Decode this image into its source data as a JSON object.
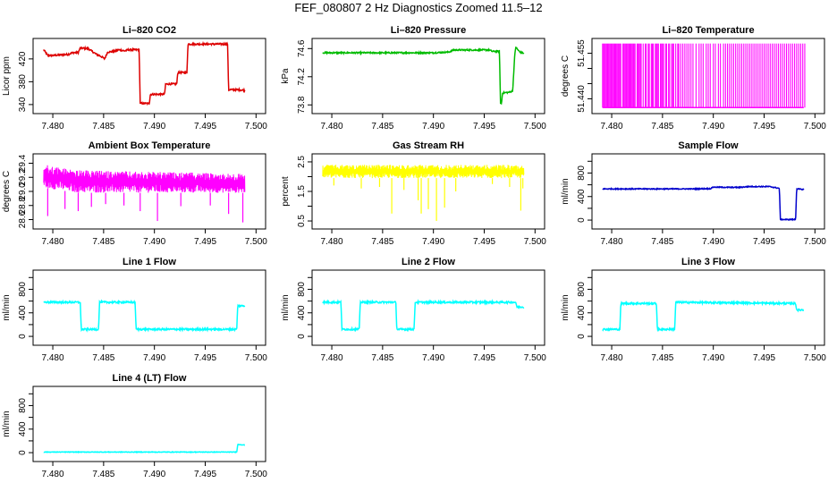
{
  "page_title": "FEF_080807  2 Hz Diagnostics Zoomed 11.5–12",
  "chart_data": [
    {
      "type": "line",
      "title": "Li–820 CO2",
      "ylabel": "Licor ppm",
      "xlabel": "",
      "color": "#dd0000",
      "xlim": [
        7.4785,
        7.5005
      ],
      "ylim": [
        332,
        448
      ],
      "xticks": [
        "7.480",
        "7.485",
        "7.490",
        "7.495",
        "7.500"
      ],
      "xtick_values": [
        7.48,
        7.485,
        7.49,
        7.495,
        7.5
      ],
      "yticks": [
        "340",
        "380",
        "420"
      ],
      "ytick_values": [
        340,
        380,
        420
      ],
      "noise": 1.5,
      "series": [
        {
          "name": "CO2",
          "points": [
            [
              7.4791,
              436
            ],
            [
              7.4795,
              426
            ],
            [
              7.48,
              426
            ],
            [
              7.4815,
              428
            ],
            [
              7.482,
              431
            ],
            [
              7.4825,
              431
            ],
            [
              7.4827,
              439
            ],
            [
              7.4835,
              438
            ],
            [
              7.4838,
              434
            ],
            [
              7.4843,
              428
            ],
            [
              7.4848,
              424
            ],
            [
              7.4851,
              420
            ],
            [
              7.4854,
              432
            ],
            [
              7.486,
              433
            ],
            [
              7.4865,
              436
            ],
            [
              7.4871,
              434
            ],
            [
              7.4874,
              436
            ],
            [
              7.4885,
              436
            ],
            [
              7.4886,
              342
            ],
            [
              7.4895,
              342
            ],
            [
              7.4896,
              358
            ],
            [
              7.491,
              358
            ],
            [
              7.4911,
              376
            ],
            [
              7.4922,
              376
            ],
            [
              7.4923,
              396
            ],
            [
              7.4932,
              396
            ],
            [
              7.4933,
              446
            ],
            [
              7.4972,
              446
            ],
            [
              7.4973,
              366
            ],
            [
              7.4982,
              366
            ],
            [
              7.4989,
              365
            ]
          ]
        }
      ]
    },
    {
      "type": "line",
      "title": "Li–820 Pressure",
      "ylabel": "kPa",
      "xlabel": "",
      "color": "#00bb00",
      "xlim": [
        7.4785,
        7.5005
      ],
      "ylim": [
        73.74,
        74.68
      ],
      "xticks": [
        "7.480",
        "7.485",
        "7.490",
        "7.495",
        "7.500"
      ],
      "xtick_values": [
        7.48,
        7.485,
        7.49,
        7.495,
        7.5
      ],
      "yticks": [
        "73.8",
        "74.2",
        "74.6"
      ],
      "ytick_values": [
        73.8,
        74.2,
        74.6
      ],
      "noise": 0.01,
      "series": [
        {
          "name": "Pressure",
          "points": [
            [
              7.4791,
              74.54
            ],
            [
              7.49,
              74.54
            ],
            [
              7.4915,
              74.55
            ],
            [
              7.492,
              74.58
            ],
            [
              7.4955,
              74.58
            ],
            [
              7.4958,
              74.56
            ],
            [
              7.4965,
              74.56
            ],
            [
              7.4966,
              73.82
            ],
            [
              7.4967,
              73.82
            ],
            [
              7.4968,
              73.97
            ],
            [
              7.4975,
              73.98
            ],
            [
              7.4978,
              74.0
            ],
            [
              7.498,
              74.5
            ],
            [
              7.4981,
              74.62
            ],
            [
              7.4985,
              74.55
            ],
            [
              7.4992,
              74.52
            ]
          ]
        }
      ]
    },
    {
      "type": "line",
      "title": "Li–820 Temperature",
      "ylabel": "degrees C",
      "xlabel": "",
      "color": "#ff00ff",
      "xlim": [
        7.4785,
        7.5005
      ],
      "ylim": [
        51.4366,
        51.4584
      ],
      "xticks": [
        "7.480",
        "7.485",
        "7.490",
        "7.495",
        "7.500"
      ],
      "xtick_values": [
        7.48,
        7.485,
        7.49,
        7.495,
        7.5
      ],
      "yticks": [
        "51.440",
        "51.455"
      ],
      "ytick_values": [
        51.44,
        51.455
      ],
      "extra_yticks": [
        51.445,
        51.45
      ],
      "baseline": 51.4371,
      "top": 51.4582,
      "spikes": [
        7.4791,
        7.4792,
        7.4793,
        7.4794,
        7.4795,
        7.4796,
        7.4797,
        7.4798,
        7.4799,
        7.48,
        7.4801,
        7.4802,
        7.4803,
        7.4804,
        7.4805,
        7.4806,
        7.4807,
        7.4808,
        7.4809,
        7.4811,
        7.4812,
        7.4813,
        7.4814,
        7.4815,
        7.4816,
        7.4817,
        7.4818,
        7.4819,
        7.482,
        7.4821,
        7.4822,
        7.4823,
        7.4825,
        7.4826,
        7.4827,
        7.4828,
        7.4829,
        7.4831,
        7.4833,
        7.4834,
        7.4836,
        7.4837,
        7.4839,
        7.484,
        7.4841,
        7.4843,
        7.4844,
        7.4845,
        7.4846,
        7.4848,
        7.4849,
        7.485,
        7.4851,
        7.4853,
        7.4854,
        7.4856,
        7.4857,
        7.4859,
        7.486,
        7.4861,
        7.4863,
        7.4865,
        7.4866,
        7.4868,
        7.487,
        7.4872,
        7.4874,
        7.4876,
        7.4878,
        7.488,
        7.4883,
        7.4886,
        7.4888,
        7.489,
        7.4893,
        7.4895,
        7.4897,
        7.49,
        7.4902,
        7.4905,
        7.4907,
        7.491,
        7.4912,
        7.4914,
        7.4916,
        7.4918,
        7.492,
        7.4922,
        7.4924,
        7.4926,
        7.4928,
        7.493,
        7.4932,
        7.4934,
        7.4936,
        7.4938,
        7.494,
        7.4942,
        7.4944,
        7.4946,
        7.4948,
        7.495,
        7.4952,
        7.4954,
        7.4956,
        7.4958,
        7.496,
        7.4962,
        7.4964,
        7.4966,
        7.4968,
        7.497,
        7.4972,
        7.4974,
        7.4976,
        7.4978,
        7.498,
        7.4982,
        7.4984,
        7.4986,
        7.4988,
        7.499
      ]
    },
    {
      "type": "line",
      "title": "Ambient Box Temperature",
      "ylabel": "degrees C",
      "xlabel": "",
      "color": "#ff00ff",
      "xlim": [
        7.4785,
        7.5005
      ],
      "ylim": [
        28.53,
        29.47
      ],
      "xticks": [
        "7.480",
        "7.485",
        "7.490",
        "7.495",
        "7.500"
      ],
      "xtick_values": [
        7.48,
        7.485,
        7.49,
        7.495,
        7.5
      ],
      "yticks": [
        "28.6",
        "28.8",
        "29.0",
        "29.2",
        "29.4"
      ],
      "ytick_values": [
        28.6,
        28.8,
        29.0,
        29.2,
        29.4
      ],
      "band": [
        {
          "x": 7.4791,
          "lo": 29.05,
          "hi": 29.38
        },
        {
          "x": 7.4825,
          "lo": 28.98,
          "hi": 29.3
        },
        {
          "x": 7.4989,
          "lo": 28.98,
          "hi": 29.25
        }
      ],
      "dips": [
        [
          7.4795,
          28.65
        ],
        [
          7.4812,
          28.75
        ],
        [
          7.4825,
          28.72
        ],
        [
          7.4838,
          28.78
        ],
        [
          7.4852,
          28.82
        ],
        [
          7.487,
          28.8
        ],
        [
          7.4886,
          28.72
        ],
        [
          7.4903,
          28.58
        ],
        [
          7.4926,
          28.79
        ],
        [
          7.4955,
          28.8
        ],
        [
          7.4973,
          28.68
        ],
        [
          7.4987,
          28.56
        ]
      ]
    },
    {
      "type": "line",
      "title": "Gas Stream RH",
      "ylabel": "percent",
      "xlabel": "",
      "color": "#ffff00",
      "xlim": [
        7.4785,
        7.5005
      ],
      "ylim": [
        0.38,
        2.62
      ],
      "xticks": [
        "7.480",
        "7.485",
        "7.490",
        "7.495",
        "7.500"
      ],
      "xtick_values": [
        7.48,
        7.485,
        7.49,
        7.495,
        7.5
      ],
      "yticks": [
        "0.5",
        "1.5",
        "2.5"
      ],
      "ytick_values": [
        0.5,
        1.5,
        2.5
      ],
      "extra_yticks": [
        1.0,
        2.0
      ],
      "band": [
        {
          "x": 7.4791,
          "lo": 1.95,
          "hi": 2.4
        },
        {
          "x": 7.4989,
          "lo": 1.95,
          "hi": 2.4
        }
      ],
      "dips": [
        [
          7.4802,
          1.7
        ],
        [
          7.4829,
          1.6
        ],
        [
          7.4847,
          1.65
        ],
        [
          7.4859,
          0.75
        ],
        [
          7.4871,
          1.55
        ],
        [
          7.4885,
          1.2
        ],
        [
          7.4888,
          0.75
        ],
        [
          7.4895,
          0.9
        ],
        [
          7.4903,
          0.5
        ],
        [
          7.4911,
          0.95
        ],
        [
          7.4922,
          1.5
        ],
        [
          7.4958,
          1.75
        ],
        [
          7.4975,
          1.65
        ],
        [
          7.4986,
          0.85
        ],
        [
          7.4988,
          1.6
        ]
      ]
    },
    {
      "type": "line",
      "title": "Sample Flow",
      "ylabel": "ml/min",
      "xlabel": "",
      "color": "#0000cc",
      "xlim": [
        7.4785,
        7.5005
      ],
      "ylim": [
        -75,
        1050
      ],
      "xticks": [
        "7.480",
        "7.485",
        "7.490",
        "7.495",
        "7.500"
      ],
      "xtick_values": [
        7.48,
        7.485,
        7.49,
        7.495,
        7.5
      ],
      "yticks": [
        "0",
        "400",
        "800"
      ],
      "ytick_values": [
        0,
        400,
        800
      ],
      "extra_yticks": [
        200,
        600,
        1000
      ],
      "noise": 8,
      "series": [
        {
          "name": "Sample Flow",
          "points": [
            [
              7.4791,
              530
            ],
            [
              7.488,
              530
            ],
            [
              7.4898,
              535
            ],
            [
              7.4899,
              560
            ],
            [
              7.4925,
              555
            ],
            [
              7.4935,
              570
            ],
            [
              7.4955,
              570
            ],
            [
              7.4965,
              540
            ],
            [
              7.4966,
              10
            ],
            [
              7.4981,
              10
            ],
            [
              7.4982,
              530
            ],
            [
              7.4989,
              520
            ]
          ]
        }
      ]
    },
    {
      "type": "line",
      "title": "Line 1 Flow",
      "ylabel": "ml/min",
      "xlabel": "",
      "color": "#00ffff",
      "xlim": [
        7.4785,
        7.5005
      ],
      "ylim": [
        -75,
        1050
      ],
      "xticks": [
        "7.480",
        "7.485",
        "7.490",
        "7.495",
        "7.500"
      ],
      "xtick_values": [
        7.48,
        7.485,
        7.49,
        7.495,
        7.5
      ],
      "yticks": [
        "0",
        "400",
        "800"
      ],
      "ytick_values": [
        0,
        400,
        800
      ],
      "extra_yticks": [
        200,
        600,
        1000
      ],
      "noise": 15,
      "series": [
        {
          "name": "Line 1",
          "points": [
            [
              7.4791,
              580
            ],
            [
              7.4827,
              580
            ],
            [
              7.4828,
              120
            ],
            [
              7.4845,
              120
            ],
            [
              7.4846,
              580
            ],
            [
              7.4881,
              580
            ],
            [
              7.4882,
              120
            ],
            [
              7.4981,
              120
            ],
            [
              7.4982,
              520
            ],
            [
              7.4989,
              520
            ]
          ]
        }
      ]
    },
    {
      "type": "line",
      "title": "Line 2 Flow",
      "ylabel": "ml/min",
      "xlabel": "",
      "color": "#00ffff",
      "xlim": [
        7.4785,
        7.5005
      ],
      "ylim": [
        -75,
        1050
      ],
      "xticks": [
        "7.480",
        "7.485",
        "7.490",
        "7.495",
        "7.500"
      ],
      "xtick_values": [
        7.48,
        7.485,
        7.49,
        7.495,
        7.5
      ],
      "yticks": [
        "0",
        "400",
        "800"
      ],
      "ytick_values": [
        0,
        400,
        800
      ],
      "extra_yticks": [
        200,
        600,
        1000
      ],
      "noise": 15,
      "series": [
        {
          "name": "Line 2",
          "points": [
            [
              7.4791,
              580
            ],
            [
              7.4809,
              580
            ],
            [
              7.481,
              120
            ],
            [
              7.4827,
              120
            ],
            [
              7.4828,
              580
            ],
            [
              7.4863,
              580
            ],
            [
              7.4864,
              120
            ],
            [
              7.4881,
              120
            ],
            [
              7.4882,
              580
            ],
            [
              7.4981,
              580
            ],
            [
              7.4982,
              500
            ],
            [
              7.4989,
              500
            ]
          ]
        }
      ]
    },
    {
      "type": "line",
      "title": "Line 3 Flow",
      "ylabel": "ml/min",
      "xlabel": "",
      "color": "#00ffff",
      "xlim": [
        7.4785,
        7.5005
      ],
      "ylim": [
        -75,
        1050
      ],
      "xticks": [
        "7.480",
        "7.485",
        "7.490",
        "7.495",
        "7.500"
      ],
      "xtick_values": [
        7.48,
        7.485,
        7.49,
        7.495,
        7.5
      ],
      "yticks": [
        "0",
        "400",
        "800"
      ],
      "ytick_values": [
        0,
        400,
        800
      ],
      "extra_yticks": [
        200,
        600,
        1000
      ],
      "noise": 15,
      "series": [
        {
          "name": "Line 3",
          "points": [
            [
              7.4791,
              120
            ],
            [
              7.4808,
              120
            ],
            [
              7.4809,
              560
            ],
            [
              7.4844,
              560
            ],
            [
              7.4845,
              120
            ],
            [
              7.4862,
              120
            ],
            [
              7.4863,
              580
            ],
            [
              7.4981,
              560
            ],
            [
              7.4982,
              450
            ],
            [
              7.4989,
              450
            ]
          ]
        }
      ]
    },
    {
      "type": "line",
      "title": "Line 4 (LT) Flow",
      "ylabel": "ml/min",
      "xlabel": "",
      "color": "#00ffff",
      "xlim": [
        7.4785,
        7.5005
      ],
      "ylim": [
        -75,
        1050
      ],
      "xticks": [
        "7.480",
        "7.485",
        "7.490",
        "7.495",
        "7.500"
      ],
      "xtick_values": [
        7.48,
        7.485,
        7.49,
        7.495,
        7.5
      ],
      "yticks": [
        "0",
        "400",
        "800"
      ],
      "ytick_values": [
        0,
        400,
        800
      ],
      "extra_yticks": [
        200,
        600,
        1000
      ],
      "noise": 5,
      "series": [
        {
          "name": "Line 4",
          "points": [
            [
              7.4791,
              10
            ],
            [
              7.4981,
              10
            ],
            [
              7.4982,
              140
            ],
            [
              7.4989,
              130
            ]
          ]
        }
      ]
    }
  ]
}
